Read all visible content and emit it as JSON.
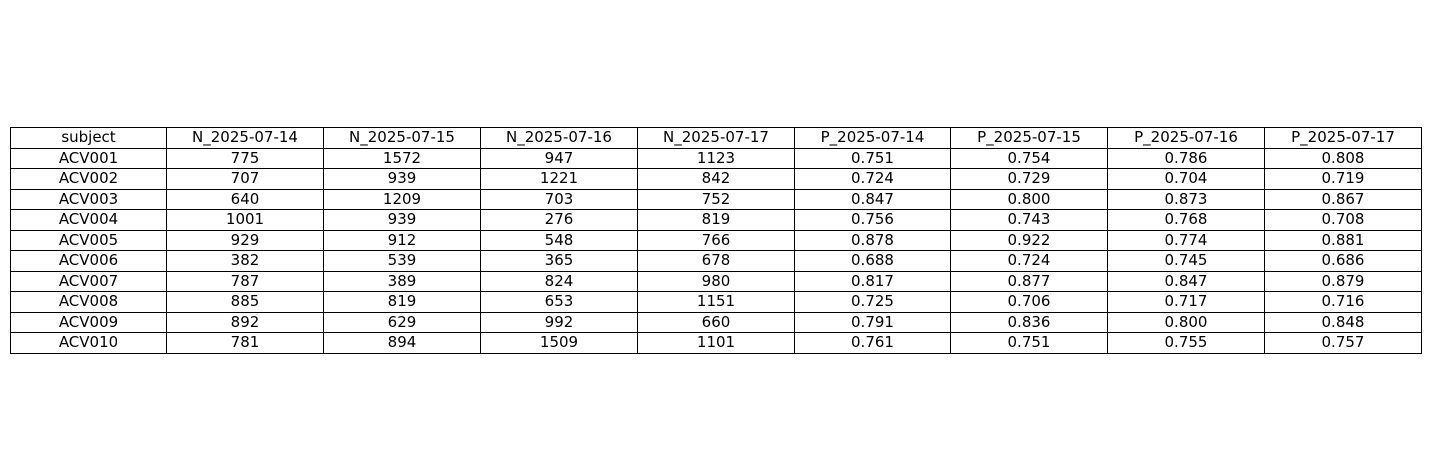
{
  "chart_data": {
    "type": "table",
    "columns": [
      "subject",
      "N_2025-07-14",
      "N_2025-07-15",
      "N_2025-07-16",
      "N_2025-07-17",
      "P_2025-07-14",
      "P_2025-07-15",
      "P_2025-07-16",
      "P_2025-07-17"
    ],
    "rows": [
      [
        "ACV001",
        "775",
        "1572",
        "947",
        "1123",
        "0.751",
        "0.754",
        "0.786",
        "0.808"
      ],
      [
        "ACV002",
        "707",
        "939",
        "1221",
        "842",
        "0.724",
        "0.729",
        "0.704",
        "0.719"
      ],
      [
        "ACV003",
        "640",
        "1209",
        "703",
        "752",
        "0.847",
        "0.800",
        "0.873",
        "0.867"
      ],
      [
        "ACV004",
        "1001",
        "939",
        "276",
        "819",
        "0.756",
        "0.743",
        "0.768",
        "0.708"
      ],
      [
        "ACV005",
        "929",
        "912",
        "548",
        "766",
        "0.878",
        "0.922",
        "0.774",
        "0.881"
      ],
      [
        "ACV006",
        "382",
        "539",
        "365",
        "678",
        "0.688",
        "0.724",
        "0.745",
        "0.686"
      ],
      [
        "ACV007",
        "787",
        "389",
        "824",
        "980",
        "0.817",
        "0.877",
        "0.847",
        "0.879"
      ],
      [
        "ACV008",
        "885",
        "819",
        "653",
        "1151",
        "0.725",
        "0.706",
        "0.717",
        "0.716"
      ],
      [
        "ACV009",
        "892",
        "629",
        "992",
        "660",
        "0.791",
        "0.836",
        "0.800",
        "0.848"
      ],
      [
        "ACV010",
        "781",
        "894",
        "1509",
        "1101",
        "0.761",
        "0.751",
        "0.755",
        "0.757"
      ]
    ],
    "border_color": "#000000",
    "background_color": "#ffffff"
  }
}
